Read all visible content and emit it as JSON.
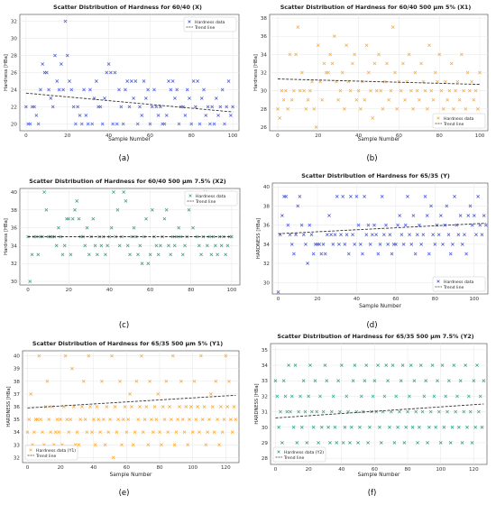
{
  "colors": {
    "blue": "#3f51d9",
    "orange": "#ffa62b",
    "teal": "#2a9c85",
    "trend": "#333333"
  },
  "chart_data": [
    {
      "panel_label": "(a)",
      "type": "scatter",
      "title": "Scatter Distribution of Hardness for 60/40 (X)",
      "xlabel": "Sample Number",
      "ylabel": "Hardness [HBa]",
      "xlim": [
        -3,
        103
      ],
      "ylim": [
        19.2,
        32.8
      ],
      "xticks": [
        0,
        20,
        40,
        60,
        80,
        100
      ],
      "yticks": [
        20,
        22,
        24,
        26,
        28,
        30,
        32
      ],
      "grid": true,
      "legend": [
        "Hardness data",
        "Trend line"
      ],
      "legend_position": "top-right",
      "color_key": "blue",
      "trend": [
        23.6,
        21.4
      ],
      "series": [
        {
          "name": "Hardness data",
          "values": [
            22,
            20,
            20,
            22,
            22,
            21,
            20,
            24,
            27,
            26,
            26,
            24,
            23,
            22,
            28,
            25,
            24,
            27,
            24,
            32,
            28,
            25,
            24,
            22,
            20,
            22,
            21,
            20,
            24,
            21,
            20,
            24,
            20,
            23,
            25,
            22,
            22,
            20,
            23,
            26,
            27,
            26,
            20,
            26,
            20,
            24,
            22,
            20,
            24,
            25,
            22,
            25,
            23,
            25,
            20,
            22,
            21,
            25,
            23,
            24,
            20,
            22,
            24,
            22,
            21,
            22,
            20,
            20,
            21,
            25,
            24,
            25,
            23,
            24,
            20,
            22,
            22,
            21,
            24,
            23,
            20,
            25,
            22,
            25,
            20,
            23,
            24,
            21,
            22,
            20,
            22,
            20,
            23,
            21,
            22,
            24,
            20,
            22,
            25,
            21,
            22
          ]
        }
      ]
    },
    {
      "panel_label": "(b)",
      "type": "scatter",
      "title": "Scatter Distribution of Hardness for 60/40 500 μm 5% (X1)",
      "xlabel": "Sample Number",
      "ylabel": "Hardness [HBa]",
      "xlim": [
        -4,
        104
      ],
      "ylim": [
        25.6,
        38.4
      ],
      "xticks": [
        0,
        20,
        40,
        60,
        80,
        100
      ],
      "yticks": [
        26,
        28,
        30,
        32,
        34,
        36,
        38
      ],
      "grid": true,
      "legend": [
        "Hardness data",
        "Trend line"
      ],
      "legend_position": "bottom-right",
      "color_key": "orange",
      "trend": [
        31.3,
        30.7
      ],
      "series": [
        {
          "name": "Hardness data",
          "values": [
            28,
            27,
            30,
            29,
            30,
            28,
            34,
            29,
            30,
            34,
            37,
            30,
            32,
            30,
            28,
            29,
            30,
            31,
            28,
            26,
            35,
            31,
            29,
            33,
            32,
            32,
            34,
            33,
            36,
            31,
            29,
            30,
            32,
            28,
            35,
            31,
            30,
            33,
            34,
            29,
            30,
            28,
            31,
            29,
            35,
            32,
            30,
            27,
            33,
            30,
            34,
            30,
            28,
            31,
            33,
            29,
            30,
            37,
            32,
            28,
            31,
            30,
            33,
            29,
            31,
            34,
            30,
            28,
            32,
            30,
            29,
            33,
            31,
            30,
            28,
            35,
            30,
            29,
            32,
            31,
            34,
            30,
            28,
            31,
            29,
            30,
            33,
            28,
            30,
            31,
            29,
            34,
            30,
            28,
            32,
            30,
            31,
            29,
            30,
            28,
            32
          ]
        }
      ]
    },
    {
      "panel_label": "(c)",
      "type": "scatter",
      "title": "Scatter Distribution of Hardness for 60/40 500 μm 7.5% (X2)",
      "xlabel": "",
      "ylabel": "Hardness [HBa]",
      "xlim": [
        -4,
        104
      ],
      "ylim": [
        29.6,
        40.4
      ],
      "xticks": [
        0,
        20,
        40,
        60,
        80,
        100
      ],
      "yticks": [
        30,
        32,
        34,
        36,
        38,
        40
      ],
      "grid": true,
      "legend": [
        "Hardness data",
        "Trend line"
      ],
      "legend_position": "top-right",
      "color_key": "teal",
      "trend": [
        35.0,
        35.0
      ],
      "series": [
        {
          "name": "Hardness data",
          "values": [
            35,
            30,
            33,
            35,
            35,
            33,
            35,
            35,
            40,
            38,
            35,
            35,
            35,
            35,
            34,
            36,
            35,
            33,
            34,
            37,
            37,
            33,
            37,
            38,
            39,
            37,
            35,
            35,
            34,
            36,
            33,
            35,
            37,
            34,
            33,
            35,
            34,
            35,
            33,
            34,
            35,
            36,
            40,
            35,
            38,
            34,
            35,
            40,
            39,
            34,
            33,
            35,
            36,
            35,
            33,
            34,
            32,
            35,
            37,
            32,
            33,
            38,
            35,
            34,
            33,
            34,
            35,
            37,
            38,
            34,
            33,
            35,
            34,
            35,
            36,
            35,
            33,
            34,
            35,
            38,
            39,
            36,
            39,
            35,
            34,
            33,
            35,
            40,
            34,
            35,
            33,
            35,
            34,
            33,
            35,
            34,
            35,
            33,
            34,
            35,
            35
          ]
        }
      ]
    },
    {
      "panel_label": "(d)",
      "type": "scatter",
      "title": "Scatter Distribution of Hardness for 65/35 (Y)",
      "xlabel": "Sample Number",
      "ylabel": "HARDNESS [HBa]",
      "xlim": [
        -3,
        107
      ],
      "ylim": [
        28.8,
        40.4
      ],
      "xticks": [
        0,
        20,
        40,
        60,
        80,
        100
      ],
      "yticks": [
        30,
        32,
        34,
        36,
        38,
        40
      ],
      "grid": true,
      "legend": [
        "Hardness data",
        "Trend line"
      ],
      "legend_position": "bottom-right",
      "color_key": "blue",
      "trend": [
        35.1,
        36.2
      ],
      "series": [
        {
          "name": "Hardness data",
          "values": [
            29,
            35,
            37,
            39,
            39,
            36,
            35,
            34,
            33,
            35,
            38,
            39,
            36,
            35,
            34,
            32,
            36,
            35,
            33,
            34,
            34,
            34,
            33,
            34,
            33,
            35,
            37,
            35,
            34,
            35,
            39,
            34,
            35,
            39,
            34,
            35,
            33,
            39,
            35,
            34,
            39,
            36,
            34,
            33,
            39,
            35,
            36,
            34,
            35,
            36,
            35,
            33,
            34,
            39,
            35,
            36,
            34,
            35,
            33,
            34,
            34,
            36,
            37,
            35,
            34,
            36,
            39,
            35,
            34,
            37,
            33,
            35,
            36,
            34,
            35,
            39,
            37,
            33,
            38,
            35,
            34,
            36,
            35,
            37,
            34,
            36,
            38,
            35,
            33,
            34,
            39,
            36,
            35,
            37,
            34,
            35,
            33,
            37,
            38,
            36,
            37,
            35,
            39,
            36,
            35,
            37,
            36
          ]
        }
      ]
    },
    {
      "panel_label": "(e)",
      "type": "scatter",
      "title": "Scatter Distribution of Hardness for 65/35 500 μm 5% (Y1)",
      "xlabel": "Sample Number",
      "ylabel": "HARDNESS [HBa]",
      "xlim": [
        -3,
        128
      ],
      "ylim": [
        31.6,
        40.4
      ],
      "xticks": [
        0,
        20,
        40,
        60,
        80,
        100,
        120
      ],
      "yticks": [
        32,
        33,
        34,
        35,
        36,
        37,
        38,
        39,
        40
      ],
      "grid": true,
      "legend": [
        "Hardness data (Y1)",
        "Trend line"
      ],
      "legend_position": "bottom-left",
      "color_key": "orange",
      "trend": [
        35.9,
        36.9
      ],
      "series": [
        {
          "name": "Hardness data (Y1)",
          "values": [
            34,
            35,
            37,
            33,
            34,
            35,
            35,
            40,
            35,
            34,
            33,
            36,
            38,
            35,
            34,
            36,
            33,
            34,
            35,
            34,
            35,
            33,
            36,
            40,
            35,
            34,
            35,
            39,
            36,
            33,
            34,
            33,
            35,
            36,
            38,
            35,
            34,
            40,
            36,
            34,
            35,
            33,
            36,
            35,
            34,
            38,
            35,
            33,
            36,
            34,
            35,
            40,
            32,
            36,
            34,
            35,
            38,
            33,
            35,
            36,
            34,
            35,
            37,
            36,
            33,
            34,
            38,
            35,
            36,
            40,
            34,
            35,
            36,
            33,
            38,
            35,
            34,
            36,
            35,
            37,
            34,
            33,
            36,
            35,
            38,
            34,
            36,
            35,
            40,
            33,
            34,
            35,
            36,
            38,
            35,
            34,
            36,
            33,
            35,
            36,
            34,
            38,
            35,
            36,
            34,
            40,
            35,
            36,
            33,
            34,
            35,
            37,
            36,
            34,
            38,
            35,
            33,
            36,
            34,
            35,
            40,
            36,
            38,
            35,
            34,
            36,
            35
          ]
        }
      ]
    },
    {
      "panel_label": "(f)",
      "type": "scatter",
      "title": "Scatter Distribution of Hardness for 65/35 500 μm 7.5% (Y2)",
      "xlabel": "Sample Number",
      "ylabel": "HARDNESS [HBa]",
      "xlim": [
        -3,
        128
      ],
      "ylim": [
        27.6,
        35.4
      ],
      "xticks": [
        0,
        20,
        40,
        60,
        80,
        100,
        120
      ],
      "yticks": [
        28,
        29,
        30,
        31,
        32,
        33,
        34,
        35
      ],
      "grid": true,
      "legend": [
        "Hardness data (Y2)",
        "Trend line"
      ],
      "legend_position": "bottom-left",
      "color_key": "teal",
      "trend": [
        30.6,
        31.5
      ],
      "series": [
        {
          "name": "Hardness data (Y2)",
          "values": [
            33,
            32,
            30,
            31,
            29,
            33,
            32,
            31,
            34,
            31,
            32,
            30,
            34,
            29,
            31,
            32,
            30,
            33,
            31,
            29,
            32,
            34,
            31,
            30,
            33,
            31,
            29,
            32,
            30,
            31,
            34,
            33,
            30,
            29,
            31,
            32,
            30,
            29,
            33,
            31,
            34,
            29,
            30,
            32,
            31,
            29,
            30,
            33,
            34,
            31,
            29,
            30,
            32,
            31,
            33,
            34,
            29,
            30,
            31,
            32,
            33,
            31,
            34,
            30,
            29,
            31,
            32,
            34,
            33,
            30,
            31,
            34,
            29,
            32,
            30,
            31,
            33,
            34,
            29,
            30,
            31,
            32,
            34,
            30,
            33,
            31,
            29,
            30,
            34,
            31,
            32,
            33,
            29,
            30,
            31,
            34,
            32,
            30,
            33,
            31,
            29,
            34,
            30,
            32,
            31,
            33,
            29,
            30,
            34,
            31,
            32,
            30,
            33,
            29,
            31,
            34,
            30,
            32,
            31,
            29,
            33,
            30,
            34,
            31,
            32,
            30,
            33
          ]
        }
      ]
    }
  ]
}
